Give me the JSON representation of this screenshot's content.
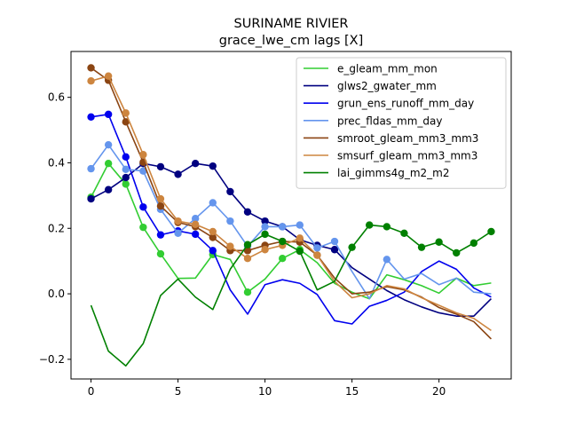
{
  "chart_data": {
    "type": "line",
    "title": "SURINAME RIVIER",
    "subtitle": "grace_lwe_cm lags [X]",
    "xlabel": "",
    "ylabel": "",
    "xlim": [
      -1.15,
      24.15
    ],
    "ylim": [
      -0.26,
      0.74
    ],
    "xticks": [
      0,
      5,
      10,
      15,
      20
    ],
    "yticks": [
      -0.2,
      0.0,
      0.2,
      0.4,
      0.6
    ],
    "ytick_labels": [
      "−0.2",
      "0.0",
      "0.2",
      "0.4",
      "0.6"
    ],
    "grid": false,
    "legend_position": "top-right",
    "x": [
      0,
      1,
      2,
      3,
      4,
      5,
      6,
      7,
      8,
      9,
      10,
      11,
      12,
      13,
      14,
      15,
      16,
      17,
      18,
      19,
      20,
      21,
      22,
      23
    ],
    "series": [
      {
        "name": "e_gleam_mm_mon",
        "color": "#32cd32",
        "values": [
          0.295,
          0.398,
          0.335,
          0.203,
          0.122,
          0.047,
          0.048,
          0.12,
          0.105,
          0.005,
          0.045,
          0.108,
          0.135,
          0.095,
          0.032,
          0.005,
          -0.015,
          0.058,
          0.043,
          0.025,
          0.002,
          0.048,
          0.025,
          0.033
        ],
        "markers": [
          0,
          1,
          2,
          3,
          4,
          7,
          9,
          11,
          12
        ]
      },
      {
        "name": "glws2_gwater_mm",
        "color": "#000080",
        "values": [
          0.29,
          0.318,
          0.355,
          0.398,
          0.388,
          0.365,
          0.398,
          0.39,
          0.312,
          0.25,
          0.222,
          0.205,
          0.165,
          0.148,
          0.135,
          0.08,
          0.045,
          0.01,
          -0.018,
          -0.04,
          -0.058,
          -0.068,
          -0.068,
          -0.015
        ],
        "markers": [
          0,
          1,
          2,
          3,
          4,
          5,
          6,
          7,
          8,
          9,
          10,
          11,
          12,
          13,
          14
        ]
      },
      {
        "name": "grun_ens_runoff_mm_day",
        "color": "#0000ee",
        "values": [
          0.54,
          0.548,
          0.418,
          0.265,
          0.18,
          0.192,
          0.182,
          0.132,
          0.012,
          -0.062,
          0.028,
          0.043,
          0.032,
          -0.002,
          -0.082,
          -0.092,
          -0.038,
          -0.02,
          0.005,
          0.068,
          0.1,
          0.075,
          0.018,
          -0.01
        ],
        "markers": [
          0,
          1,
          2,
          3,
          4,
          5,
          6,
          7
        ]
      },
      {
        "name": "prec_fldas_mm_day",
        "color": "#6495ed",
        "values": [
          0.382,
          0.455,
          0.38,
          0.375,
          0.258,
          0.185,
          0.23,
          0.278,
          0.222,
          0.145,
          0.205,
          0.205,
          0.21,
          0.14,
          0.16,
          0.068,
          -0.015,
          0.105,
          0.045,
          0.062,
          0.028,
          0.048,
          0.005,
          0.0
        ],
        "markers": [
          0,
          1,
          2,
          3,
          4,
          5,
          6,
          7,
          8,
          9,
          10,
          11,
          12,
          13,
          14,
          17
        ]
      },
      {
        "name": "smroot_gleam_mm3_mm3",
        "color": "#8b4513",
        "values": [
          0.69,
          0.652,
          0.525,
          0.402,
          0.268,
          0.218,
          0.205,
          0.172,
          0.132,
          0.132,
          0.148,
          0.16,
          0.158,
          0.118,
          0.048,
          0.0,
          0.005,
          0.022,
          0.012,
          -0.01,
          -0.042,
          -0.062,
          -0.085,
          -0.138
        ],
        "markers": [
          0,
          1,
          2,
          3,
          4,
          5,
          6,
          7,
          8,
          9,
          10,
          11,
          12,
          13
        ]
      },
      {
        "name": "smsurf_gleam_mm3_mm3",
        "color": "#cd853f",
        "values": [
          0.65,
          0.665,
          0.552,
          0.425,
          0.29,
          0.222,
          0.212,
          0.19,
          0.145,
          0.108,
          0.135,
          0.148,
          0.17,
          0.118,
          0.038,
          -0.012,
          0.0,
          0.025,
          0.015,
          -0.012,
          -0.035,
          -0.058,
          -0.075,
          -0.112
        ],
        "markers": [
          0,
          1,
          2,
          3,
          4,
          5,
          6,
          7,
          8,
          9,
          10,
          11,
          12,
          13
        ]
      },
      {
        "name": "lai_gimms4g_m2_m2",
        "color": "#008000",
        "values": [
          -0.035,
          -0.175,
          -0.22,
          -0.152,
          -0.005,
          0.045,
          -0.01,
          -0.048,
          0.075,
          0.15,
          0.182,
          0.16,
          0.13,
          0.012,
          0.038,
          0.142,
          0.21,
          0.205,
          0.185,
          0.142,
          0.158,
          0.125,
          0.155,
          0.19
        ],
        "markers": [
          9,
          10,
          11,
          12,
          15,
          16,
          17,
          18,
          19,
          20,
          21,
          22,
          23
        ]
      }
    ]
  }
}
